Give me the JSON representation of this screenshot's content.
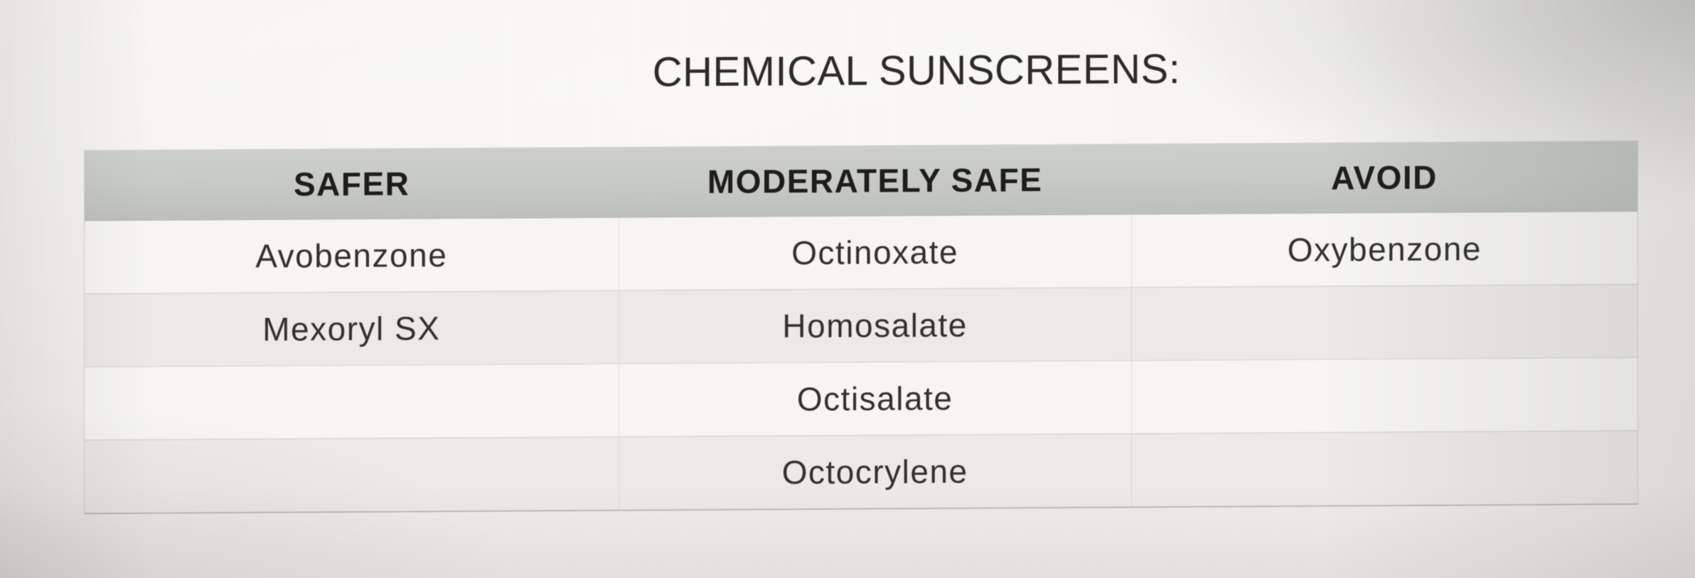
{
  "page": {
    "title": "CHEMICAL SUNSCREENS:"
  },
  "table": {
    "headers": [
      "SAFER",
      "MODERATELY SAFE",
      "AVOID"
    ],
    "rows": [
      [
        "Avobenzone",
        "Octinoxate",
        "Oxybenzone"
      ],
      [
        "Mexoryl SX",
        "Homosalate",
        ""
      ],
      [
        "",
        "Octisalate",
        ""
      ],
      [
        "",
        "Octocrylene",
        ""
      ]
    ]
  },
  "colors": {
    "page_bg": "#f2f0ec",
    "header_bg": "#c8cbc4",
    "header_text": "#1d1d1b",
    "row_light": "#f6f5f2",
    "row_dark": "#eceae6",
    "body_text": "#32312e",
    "title_text": "#2c2b29",
    "table_border": "#d3d2cd"
  }
}
